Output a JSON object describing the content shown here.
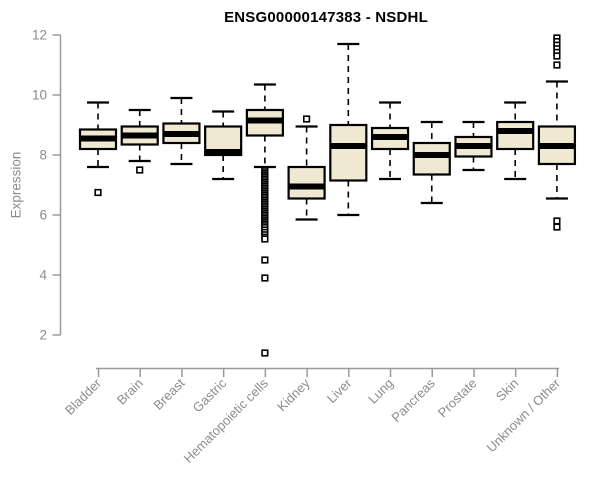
{
  "chart_data": {
    "type": "boxplot",
    "title": "ENSG00000147383 - NSDHL",
    "ylabel": "Expression",
    "xlabel": "",
    "ylim": [
      2,
      12
    ],
    "yticks": [
      2,
      4,
      6,
      8,
      10,
      12
    ],
    "grid": false,
    "legend": "none",
    "colors": {
      "box_fill": "#f0e9d2",
      "box_stroke": "#000000",
      "median": "#000000",
      "axis": "#9a9a9a",
      "tick_label": "#8c8c8c",
      "title": "#000000",
      "background": "#ffffff"
    },
    "categories": [
      "Bladder",
      "Brain",
      "Breast",
      "Gastric",
      "Hematopoietic cells",
      "Kidney",
      "Liver",
      "Lung",
      "Pancreas",
      "Prostate",
      "Skin",
      "Unknown / Other"
    ],
    "series": [
      {
        "category": "Bladder",
        "whisker_low": 7.6,
        "q1": 8.2,
        "median": 8.55,
        "q3": 8.85,
        "whisker_high": 9.75,
        "outliers": [
          6.75
        ]
      },
      {
        "category": "Brain",
        "whisker_low": 7.8,
        "q1": 8.35,
        "median": 8.65,
        "q3": 8.95,
        "whisker_high": 9.5,
        "outliers": [
          7.5
        ]
      },
      {
        "category": "Breast",
        "whisker_low": 7.7,
        "q1": 8.4,
        "median": 8.7,
        "q3": 9.05,
        "whisker_high": 9.9,
        "outliers": []
      },
      {
        "category": "Gastric",
        "whisker_low": 7.2,
        "q1": 8.0,
        "median": 8.1,
        "q3": 8.95,
        "whisker_high": 9.45,
        "outliers": []
      },
      {
        "category": "Hematopoietic cells",
        "whisker_low": 7.6,
        "q1": 8.65,
        "median": 9.15,
        "q3": 9.5,
        "whisker_high": 10.35,
        "outliers": [
          7.5,
          7.44,
          7.38,
          7.32,
          7.26,
          7.2,
          7.14,
          7.08,
          7.02,
          6.96,
          6.9,
          6.84,
          6.78,
          6.72,
          6.66,
          6.6,
          6.54,
          6.48,
          6.42,
          6.36,
          6.3,
          6.24,
          6.18,
          6.12,
          6.06,
          6.0,
          5.94,
          5.88,
          5.82,
          5.76,
          5.7,
          5.64,
          5.58,
          5.5,
          5.42,
          5.34,
          5.26,
          5.2,
          4.5,
          3.9,
          1.4
        ]
      },
      {
        "category": "Kidney",
        "whisker_low": 5.85,
        "q1": 6.55,
        "median": 6.95,
        "q3": 7.6,
        "whisker_high": 8.95,
        "outliers": [
          9.2
        ]
      },
      {
        "category": "Liver",
        "whisker_low": 6.0,
        "q1": 7.15,
        "median": 8.3,
        "q3": 9.0,
        "whisker_high": 11.7,
        "outliers": []
      },
      {
        "category": "Lung",
        "whisker_low": 7.2,
        "q1": 8.2,
        "median": 8.6,
        "q3": 8.9,
        "whisker_high": 9.75,
        "outliers": []
      },
      {
        "category": "Pancreas",
        "whisker_low": 6.4,
        "q1": 7.35,
        "median": 8.0,
        "q3": 8.4,
        "whisker_high": 9.1,
        "outliers": []
      },
      {
        "category": "Prostate",
        "whisker_low": 7.5,
        "q1": 7.95,
        "median": 8.3,
        "q3": 8.6,
        "whisker_high": 9.1,
        "outliers": []
      },
      {
        "category": "Skin",
        "whisker_low": 7.2,
        "q1": 8.2,
        "median": 8.8,
        "q3": 9.1,
        "whisker_high": 9.75,
        "outliers": []
      },
      {
        "category": "Unknown / Other",
        "whisker_low": 6.55,
        "q1": 7.7,
        "median": 8.3,
        "q3": 8.95,
        "whisker_high": 10.45,
        "outliers": [
          11.9,
          11.78,
          11.66,
          11.54,
          11.42,
          11.3,
          11.0,
          5.8,
          5.6
        ]
      }
    ]
  }
}
